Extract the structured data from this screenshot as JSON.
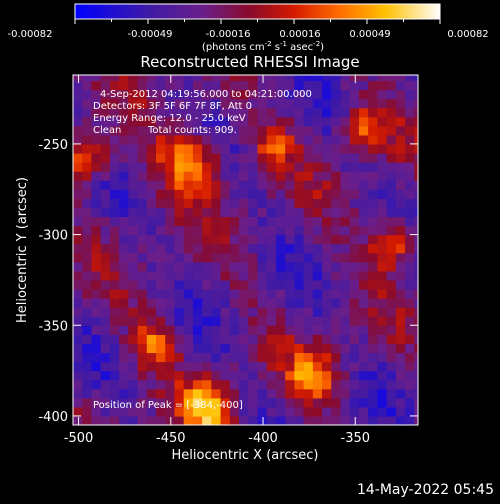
{
  "colorbar": {
    "ticks": [
      "-0.00082",
      "-0.00049",
      "-0.00016",
      "0.00016",
      "0.00049",
      "0.00082"
    ],
    "units_parts": {
      "a": "(photons cm",
      "a_sup": "-2",
      "b": " s",
      "b_sup": "-1",
      "c": " asec",
      "c_sup": "-2",
      "d": ")"
    }
  },
  "info": {
    "time_range": "4-Sep-2012 04:19:56.000 to 04:21:00.000",
    "detectors": "Detectors: 3F 5F 6F 7F 8F, Att 0",
    "energy": "Energy Range: 12.0 - 25.0 keV",
    "clean_label": "Clean",
    "total_counts": "Total counts: 909.",
    "peak_position": "Position of Peak = [-384,-400]"
  },
  "footer": {
    "timestamp": "14-May-2022 05:45"
  },
  "colors": {
    "background": "#000000",
    "text": "#ffffff"
  },
  "chart_data": {
    "type": "heatmap",
    "title": "Reconstructed RHESSI Image",
    "xlabel": "Heliocentric X (arcsec)",
    "ylabel": "Heliocentric Y (arcsec)",
    "xlim": [
      -503,
      -316
    ],
    "ylim": [
      -405,
      -212
    ],
    "x_ticks": [
      -500,
      -450,
      -400,
      -350
    ],
    "x_tick_labels": [
      "-500",
      "-450",
      "-400",
      "-350"
    ],
    "y_ticks": [
      -250,
      -300,
      -350,
      -400
    ],
    "y_tick_labels": [
      "-250",
      "-300",
      "-350",
      "-400"
    ],
    "colormap": "blue-purple-red-orange-yellow-white",
    "value_range": [
      -0.00082,
      0.00082
    ],
    "peak": [
      -384,
      -400
    ],
    "bright_regions": [
      {
        "x": -440,
        "y": -260,
        "r": 18,
        "value": 0.0007
      },
      {
        "x": -430,
        "y": -395,
        "r": 14,
        "value": 0.00082
      },
      {
        "x": -330,
        "y": -305,
        "r": 13,
        "value": 0.0007
      },
      {
        "x": -345,
        "y": -240,
        "r": 12,
        "value": 0.0006
      },
      {
        "x": -495,
        "y": -258,
        "r": 13,
        "value": 0.0006
      },
      {
        "x": -460,
        "y": -360,
        "r": 12,
        "value": 0.0006
      },
      {
        "x": -372,
        "y": -378,
        "r": 14,
        "value": 0.00065
      },
      {
        "x": -395,
        "y": -250,
        "r": 12,
        "value": 0.0005
      }
    ]
  }
}
